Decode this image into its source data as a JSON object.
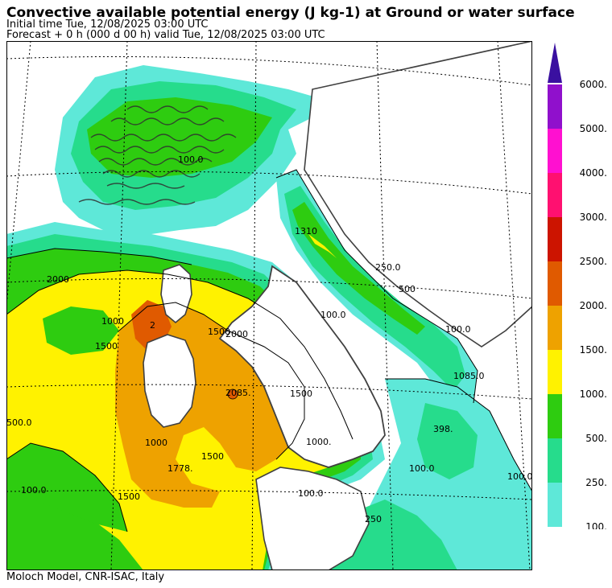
{
  "header": {
    "title": "Convective available potential energy (J kg-1) at Ground or water surface",
    "initial_time": "Initial time  Tue, 12/08/2025  03:00 UTC",
    "forecast": "Forecast  +   0 h  (000 d 00 h)  valid Tue, 12/08/2025 03:00 UTC"
  },
  "footer": {
    "credit": "Moloch Model, CNR-ISAC, Italy"
  },
  "legend": {
    "levels": [
      {
        "label": "100.",
        "color": "#5ee8d8"
      },
      {
        "label": "250.",
        "color": "#26dc8c"
      },
      {
        "label": "500.",
        "color": "#2ecc10"
      },
      {
        "label": "1000.",
        "color": "#fff200"
      },
      {
        "label": "1500.",
        "color": "#eea200"
      },
      {
        "label": "2000.",
        "color": "#e05a00"
      },
      {
        "label": "2500.",
        "color": "#cc1400"
      },
      {
        "label": "3000.",
        "color": "#ff1070"
      },
      {
        "label": "4000.",
        "color": "#ff10d0"
      },
      {
        "label": "5000.",
        "color": "#9010cc"
      },
      {
        "label": "6000.",
        "color": "#3a10a0"
      }
    ]
  },
  "map": {
    "contour_labels": [
      {
        "text": "100.0"
      },
      {
        "text": "1310"
      },
      {
        "text": "250.0"
      },
      {
        "text": "500"
      },
      {
        "text": "100.0"
      },
      {
        "text": "2000"
      },
      {
        "text": "1000"
      },
      {
        "text": "1500"
      },
      {
        "text": "2000"
      },
      {
        "text": "1500"
      },
      {
        "text": "2"
      },
      {
        "text": "2085."
      },
      {
        "text": "1500"
      },
      {
        "text": "1000."
      },
      {
        "text": "398."
      },
      {
        "text": "500.0"
      },
      {
        "text": "1000"
      },
      {
        "text": "1778."
      },
      {
        "text": "1500"
      },
      {
        "text": "100.0"
      },
      {
        "text": "1500"
      },
      {
        "text": "100.0"
      },
      {
        "text": "100.0"
      },
      {
        "text": "100.0"
      },
      {
        "text": "1085.0"
      },
      {
        "text": "250"
      },
      {
        "text": "100.0"
      }
    ]
  }
}
